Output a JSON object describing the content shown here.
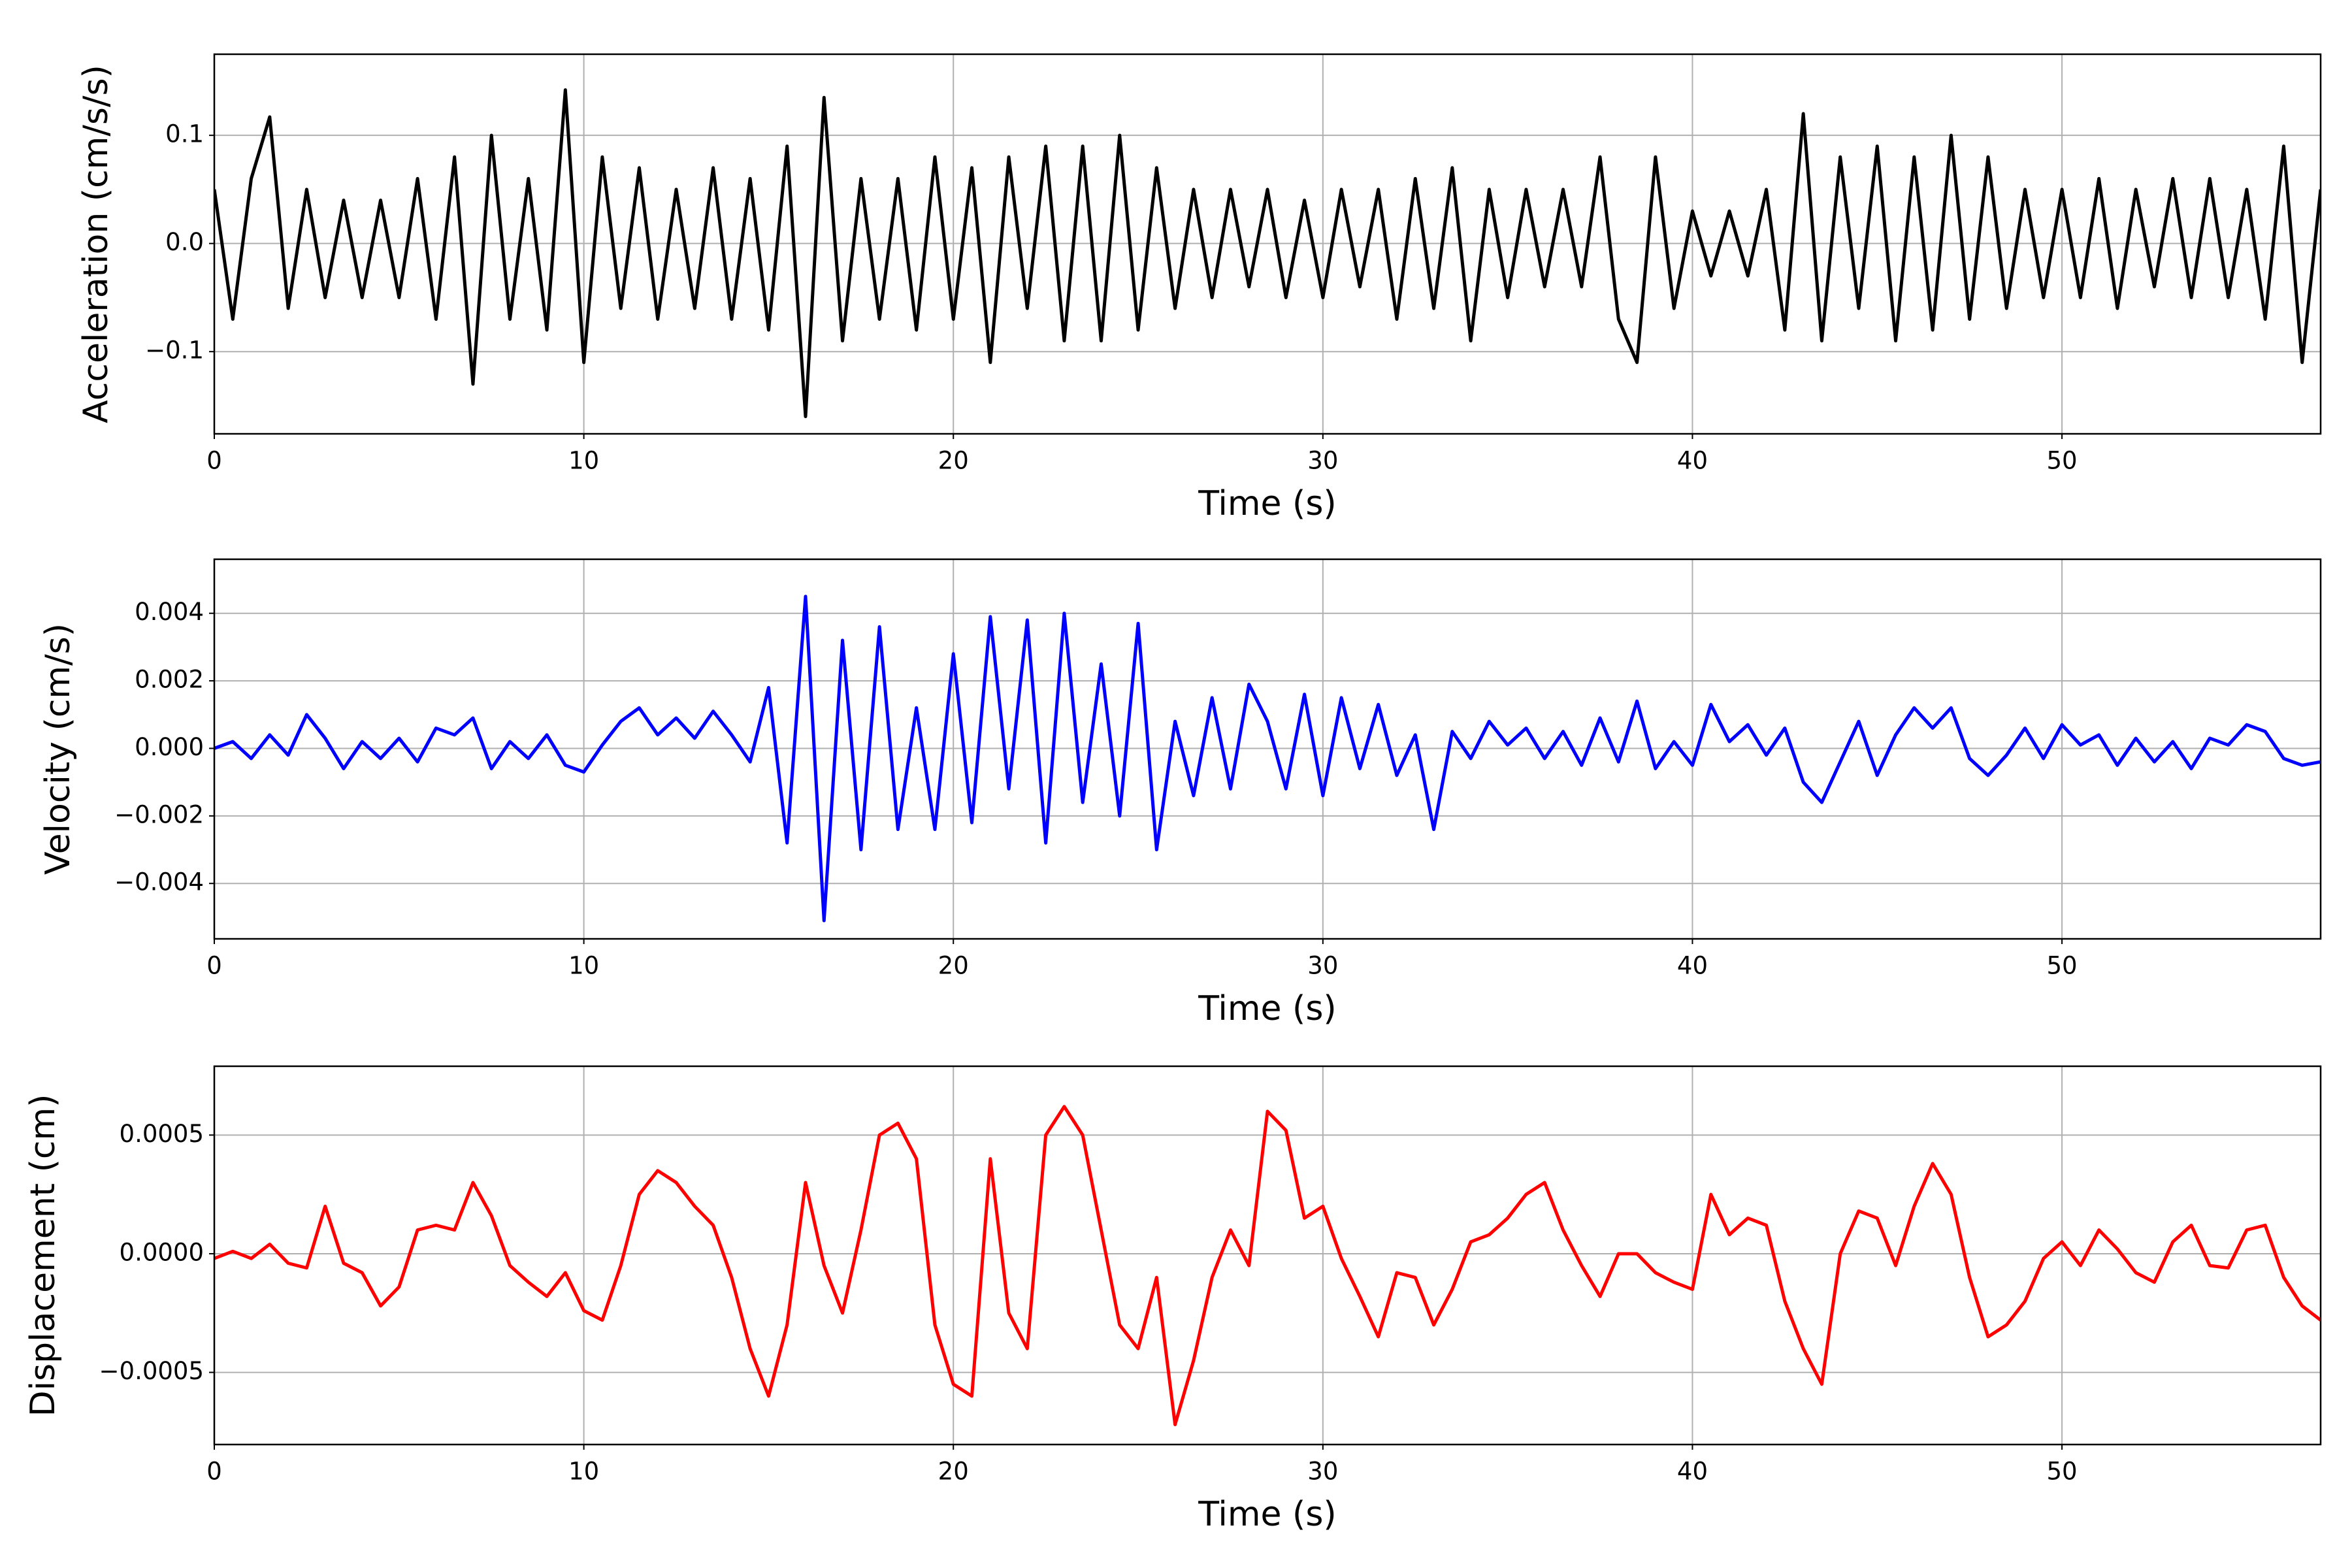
{
  "chart_data": [
    {
      "type": "line",
      "xlabel": "Time (s)",
      "ylabel": "Acceleration (cm/s/s)",
      "color": "#000000",
      "grid": true,
      "xlim": [
        0,
        57
      ],
      "xticks": [
        0,
        10,
        20,
        30,
        40,
        50
      ],
      "ylim": [
        -0.176,
        0.175
      ],
      "yticks": [
        {
          "value": -0.1,
          "label": "−0.1"
        },
        {
          "value": 0,
          "label": "0.0"
        },
        {
          "value": 0.1,
          "label": "0.1"
        }
      ],
      "x": [
        0,
        0.5,
        1,
        1.5,
        2,
        2.5,
        3,
        3.5,
        4,
        4.5,
        5,
        5.5,
        6,
        6.5,
        7,
        7.5,
        8,
        8.5,
        9,
        9.5,
        10,
        10.5,
        11,
        11.5,
        12,
        12.5,
        13,
        13.5,
        14,
        14.5,
        15,
        15.5,
        16,
        16.5,
        17,
        17.5,
        18,
        18.5,
        19,
        19.5,
        20,
        20.5,
        21,
        21.5,
        22,
        22.5,
        23,
        23.5,
        24,
        24.5,
        25,
        25.5,
        26,
        26.5,
        27,
        27.5,
        28,
        28.5,
        29,
        29.5,
        30,
        30.5,
        31,
        31.5,
        32,
        32.5,
        33,
        33.5,
        34,
        34.5,
        35,
        35.5,
        36,
        36.5,
        37,
        37.5,
        38,
        38.5,
        39,
        39.5,
        40,
        40.5,
        41,
        41.5,
        42,
        42.5,
        43,
        43.5,
        44,
        44.5,
        45,
        45.5,
        46,
        46.5,
        47,
        47.5,
        48,
        48.5,
        49,
        49.5,
        50,
        50.5,
        51,
        51.5,
        52,
        52.5,
        53,
        53.5,
        54,
        54.5,
        55,
        55.5,
        56,
        56.5,
        57
      ],
      "values": [
        0.05,
        -0.07,
        0.06,
        0.117,
        -0.06,
        0.05,
        -0.05,
        0.04,
        -0.05,
        0.04,
        -0.05,
        0.06,
        -0.07,
        0.08,
        -0.13,
        0.1,
        -0.07,
        0.06,
        -0.08,
        0.142,
        -0.11,
        0.08,
        -0.06,
        0.07,
        -0.07,
        0.05,
        -0.06,
        0.07,
        -0.07,
        0.06,
        -0.08,
        0.09,
        -0.16,
        0.135,
        -0.09,
        0.06,
        -0.07,
        0.06,
        -0.08,
        0.08,
        -0.07,
        0.07,
        -0.11,
        0.08,
        -0.06,
        0.09,
        -0.09,
        0.09,
        -0.09,
        0.1,
        -0.08,
        0.07,
        -0.06,
        0.05,
        -0.05,
        0.05,
        -0.04,
        0.05,
        -0.05,
        0.04,
        -0.05,
        0.05,
        -0.04,
        0.05,
        -0.07,
        0.06,
        -0.06,
        0.07,
        -0.09,
        0.05,
        -0.05,
        0.05,
        -0.04,
        0.05,
        -0.04,
        0.08,
        -0.07,
        -0.11,
        0.08,
        -0.06,
        0.03,
        -0.03,
        0.03,
        -0.03,
        0.05,
        -0.08,
        0.12,
        -0.09,
        0.08,
        -0.06,
        0.09,
        -0.09,
        0.08,
        -0.08,
        0.1,
        -0.07,
        0.08,
        -0.06,
        0.05,
        -0.05,
        0.05,
        -0.05,
        0.06,
        -0.06,
        0.05,
        -0.04,
        0.06,
        -0.05,
        0.06,
        -0.05,
        0.05,
        -0.07,
        0.09,
        -0.11,
        0.05
      ]
    },
    {
      "type": "line",
      "xlabel": "Time (s)",
      "ylabel": "Velocity (cm/s)",
      "color": "#0000ff",
      "grid": true,
      "xlim": [
        0,
        57
      ],
      "xticks": [
        0,
        10,
        20,
        30,
        40,
        50
      ],
      "ylim": [
        -0.00564,
        0.0056
      ],
      "yticks": [
        {
          "value": -0.004,
          "label": "−0.004"
        },
        {
          "value": -0.002,
          "label": "−0.002"
        },
        {
          "value": 0,
          "label": "0.000"
        },
        0.002,
        0.004
      ],
      "x": [
        0,
        0.5,
        1,
        1.5,
        2,
        2.5,
        3,
        3.5,
        4,
        4.5,
        5,
        5.5,
        6,
        6.5,
        7,
        7.5,
        8,
        8.5,
        9,
        9.5,
        10,
        10.5,
        11,
        11.5,
        12,
        12.5,
        13,
        13.5,
        14,
        14.5,
        15,
        15.5,
        16,
        16.5,
        17,
        17.5,
        18,
        18.5,
        19,
        19.5,
        20,
        20.5,
        21,
        21.5,
        22,
        22.5,
        23,
        23.5,
        24,
        24.5,
        25,
        25.5,
        26,
        26.5,
        27,
        27.5,
        28,
        28.5,
        29,
        29.5,
        30,
        30.5,
        31,
        31.5,
        32,
        32.5,
        33,
        33.5,
        34,
        34.5,
        35,
        35.5,
        36,
        36.5,
        37,
        37.5,
        38,
        38.5,
        39,
        39.5,
        40,
        40.5,
        41,
        41.5,
        42,
        42.5,
        43,
        43.5,
        44,
        44.5,
        45,
        45.5,
        46,
        46.5,
        47,
        47.5,
        48,
        48.5,
        49,
        49.5,
        50,
        50.5,
        51,
        51.5,
        52,
        52.5,
        53,
        53.5,
        54,
        54.5,
        55,
        55.5,
        56,
        56.5,
        57
      ],
      "values": [
        0.0,
        0.0002,
        -0.0003,
        0.0004,
        -0.0002,
        0.001,
        0.0003,
        -0.0006,
        0.0002,
        -0.0003,
        0.0003,
        -0.0004,
        0.0006,
        0.0004,
        0.0009,
        -0.0006,
        0.0002,
        -0.0003,
        0.0004,
        -0.0005,
        -0.0007,
        0.0001,
        0.0008,
        0.0012,
        0.0004,
        0.0009,
        0.0003,
        0.0011,
        0.0004,
        -0.0004,
        0.0018,
        -0.0028,
        0.0045,
        -0.0051,
        0.0032,
        -0.003,
        0.0036,
        -0.0024,
        0.0012,
        -0.0024,
        0.0028,
        -0.0022,
        0.0039,
        -0.0012,
        0.0038,
        -0.0028,
        0.004,
        -0.0016,
        0.0025,
        -0.002,
        0.0037,
        -0.003,
        0.0008,
        -0.0014,
        0.0015,
        -0.0012,
        0.0019,
        0.0008,
        -0.0012,
        0.0016,
        -0.0014,
        0.0015,
        -0.0006,
        0.0013,
        -0.0008,
        0.0004,
        -0.0024,
        0.0005,
        -0.0003,
        0.0008,
        0.0001,
        0.0006,
        -0.0003,
        0.0005,
        -0.0005,
        0.0009,
        -0.0004,
        0.0014,
        -0.0006,
        0.0002,
        -0.0005,
        0.0013,
        0.0002,
        0.0007,
        -0.0002,
        0.0006,
        -0.001,
        -0.0016,
        -0.0004,
        0.0008,
        -0.0008,
        0.0004,
        0.0012,
        0.0006,
        0.0012,
        -0.0003,
        -0.0008,
        -0.0002,
        0.0006,
        -0.0003,
        0.0007,
        0.0001,
        0.0004,
        -0.0005,
        0.0003,
        -0.0004,
        0.0002,
        -0.0006,
        0.0003,
        0.0001,
        0.0007,
        0.0005,
        -0.0003,
        -0.0005,
        -0.0004
      ]
    },
    {
      "type": "line",
      "xlabel": "Time (s)",
      "ylabel": "Displacement (cm)",
      "color": "#ff0000",
      "grid": true,
      "xlim": [
        0,
        57
      ],
      "xticks": [
        0,
        10,
        20,
        30,
        40,
        50
      ],
      "ylim": [
        -0.000804,
        0.00079
      ],
      "yticks": [
        {
          "value": -0.0005,
          "label": "−0.0005"
        },
        {
          "value": 0,
          "label": "0.0000"
        },
        0.0005
      ],
      "x": [
        0,
        0.5,
        1,
        1.5,
        2,
        2.5,
        3,
        3.5,
        4,
        4.5,
        5,
        5.5,
        6,
        6.5,
        7,
        7.5,
        8,
        8.5,
        9,
        9.5,
        10,
        10.5,
        11,
        11.5,
        12,
        12.5,
        13,
        13.5,
        14,
        14.5,
        15,
        15.5,
        16,
        16.5,
        17,
        17.5,
        18,
        18.5,
        19,
        19.5,
        20,
        20.5,
        21,
        21.5,
        22,
        22.5,
        23,
        23.5,
        24,
        24.5,
        25,
        25.5,
        26,
        26.5,
        27,
        27.5,
        28,
        28.5,
        29,
        29.5,
        30,
        30.5,
        31,
        31.5,
        32,
        32.5,
        33,
        33.5,
        34,
        34.5,
        35,
        35.5,
        36,
        36.5,
        37,
        37.5,
        38,
        38.5,
        39,
        39.5,
        40,
        40.5,
        41,
        41.5,
        42,
        42.5,
        43,
        43.5,
        44,
        44.5,
        45,
        45.5,
        46,
        46.5,
        47,
        47.5,
        48,
        48.5,
        49,
        49.5,
        50,
        50.5,
        51,
        51.5,
        52,
        52.5,
        53,
        53.5,
        54,
        54.5,
        55,
        55.5,
        56,
        56.5,
        57
      ],
      "values": [
        -2e-05,
        1e-05,
        -2e-05,
        4e-05,
        -4e-05,
        -6e-05,
        0.0002,
        -4e-05,
        -8e-05,
        -0.00022,
        -0.00014,
        0.0001,
        0.00012,
        0.0001,
        0.0003,
        0.00016,
        -5e-05,
        -0.00012,
        -0.00018,
        -8e-05,
        -0.00024,
        -0.00028,
        -5e-05,
        0.00025,
        0.00035,
        0.0003,
        0.0002,
        0.00012,
        -0.0001,
        -0.0004,
        -0.0006,
        -0.0003,
        0.0003,
        -5e-05,
        -0.00025,
        0.0001,
        0.0005,
        0.00055,
        0.0004,
        -0.0003,
        -0.00055,
        -0.0006,
        0.0004,
        -0.00025,
        -0.0004,
        0.0005,
        0.00062,
        0.0005,
        0.0001,
        -0.0003,
        -0.0004,
        -0.0001,
        -0.00072,
        -0.00045,
        -0.0001,
        0.0001,
        -5e-05,
        0.0006,
        0.00052,
        0.00015,
        0.0002,
        -2e-05,
        -0.00018,
        -0.00035,
        -8e-05,
        -0.0001,
        -0.0003,
        -0.00015,
        5e-05,
        8e-05,
        0.00015,
        0.00025,
        0.0003,
        0.0001,
        -5e-05,
        -0.00018,
        0.0,
        0.0,
        -8e-05,
        -0.00012,
        -0.00015,
        0.00025,
        8e-05,
        0.00015,
        0.00012,
        -0.0002,
        -0.0004,
        -0.00055,
        0.0,
        0.00018,
        0.00015,
        -5e-05,
        0.0002,
        0.00038,
        0.00025,
        -0.0001,
        -0.00035,
        -0.0003,
        -0.0002,
        -2e-05,
        5e-05,
        -5e-05,
        0.0001,
        2e-05,
        -8e-05,
        -0.00012,
        5e-05,
        0.00012,
        -5e-05,
        -6e-05,
        0.0001,
        0.00012,
        -0.0001,
        -0.00022,
        -0.00028
      ]
    }
  ]
}
